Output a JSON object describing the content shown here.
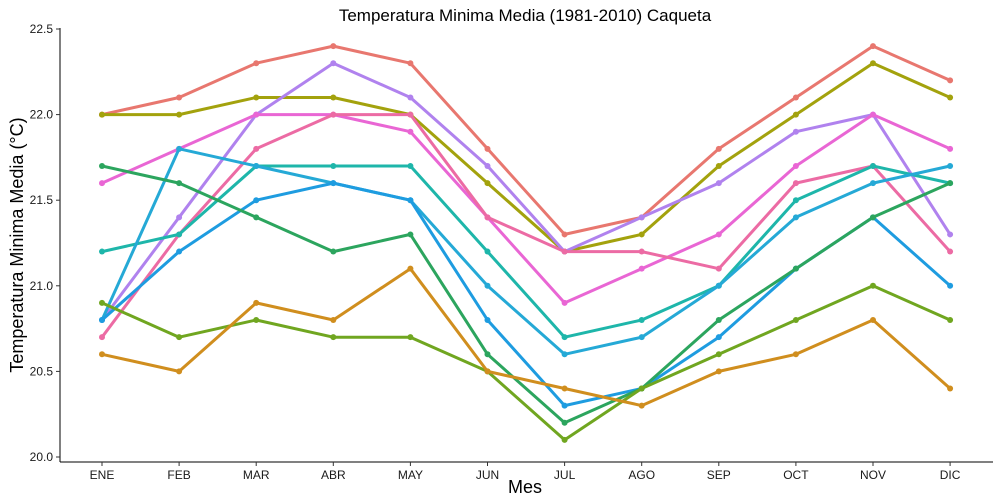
{
  "chart_data": {
    "type": "line",
    "title": "Temperatura Minima Media (1981-2010)  Caqueta",
    "xlabel": "Mes",
    "ylabel": "Temperatura Minima Media  (°C)",
    "categories": [
      "ENE",
      "FEB",
      "MAR",
      "ABR",
      "MAY",
      "JUN",
      "JUL",
      "AGO",
      "SEP",
      "OCT",
      "NOV",
      "DIC"
    ],
    "ylim": [
      20.0,
      22.5
    ],
    "yticks": [
      "20.0",
      "20.5",
      "21.0",
      "21.5",
      "22.0",
      "22.5"
    ],
    "grid": false,
    "legend": "none",
    "series": [
      {
        "color": "#E8776F",
        "values": [
          22.0,
          22.1,
          22.3,
          22.4,
          22.3,
          21.8,
          21.3,
          21.4,
          21.8,
          22.1,
          22.4,
          22.2
        ]
      },
      {
        "color": "#A3A20D",
        "values": [
          22.0,
          22.0,
          22.1,
          22.1,
          22.0,
          21.6,
          21.2,
          21.3,
          21.7,
          22.0,
          22.3,
          22.1
        ]
      },
      {
        "color": "#B082EE",
        "values": [
          20.8,
          21.4,
          22.0,
          22.3,
          22.1,
          21.7,
          21.2,
          21.4,
          21.6,
          21.9,
          22.0,
          21.3
        ]
      },
      {
        "color": "#E966D4",
        "values": [
          21.6,
          21.8,
          22.0,
          22.0,
          21.9,
          21.4,
          20.9,
          21.1,
          21.3,
          21.7,
          22.0,
          21.8
        ]
      },
      {
        "color": "#EC6BA4",
        "values": [
          20.7,
          21.3,
          21.8,
          22.0,
          22.0,
          21.4,
          21.2,
          21.2,
          21.1,
          21.6,
          21.7,
          21.2
        ]
      },
      {
        "color": "#1EB6AA",
        "values": [
          21.2,
          21.3,
          21.7,
          21.7,
          21.7,
          21.2,
          20.7,
          20.8,
          21.0,
          21.5,
          21.7,
          21.6
        ]
      },
      {
        "color": "#25A9D6",
        "values": [
          20.8,
          21.8,
          21.7,
          21.6,
          21.5,
          21.0,
          20.6,
          20.7,
          21.0,
          21.4,
          21.6,
          21.7
        ]
      },
      {
        "color": "#1E9CE0",
        "values": [
          20.8,
          21.2,
          21.5,
          21.6,
          21.5,
          20.8,
          20.3,
          20.4,
          20.7,
          21.1,
          21.4,
          21.0
        ]
      },
      {
        "color": "#2CA55E",
        "values": [
          21.7,
          21.6,
          21.4,
          21.2,
          21.3,
          20.6,
          20.2,
          20.4,
          20.8,
          21.1,
          21.4,
          21.6
        ]
      },
      {
        "color": "#70A620",
        "values": [
          20.9,
          20.7,
          20.8,
          20.7,
          20.7,
          20.5,
          20.1,
          20.4,
          20.6,
          20.8,
          21.0,
          20.8
        ]
      },
      {
        "color": "#D08E1E",
        "values": [
          20.6,
          20.5,
          20.9,
          20.8,
          21.1,
          20.5,
          20.4,
          20.3,
          20.5,
          20.6,
          20.8,
          20.4
        ]
      }
    ]
  }
}
